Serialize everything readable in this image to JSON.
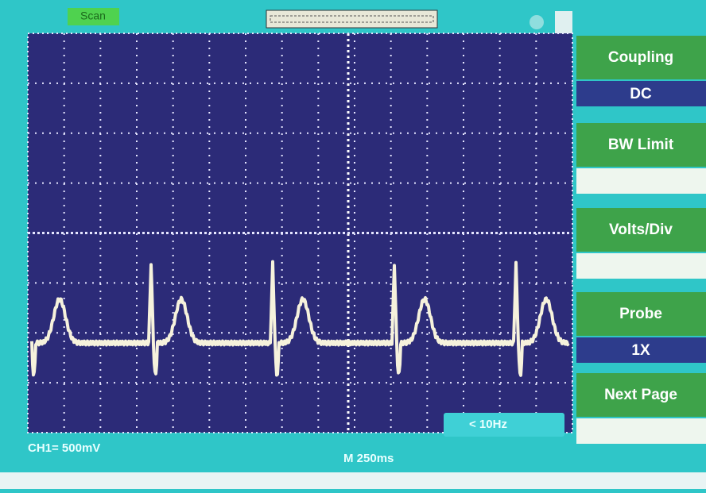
{
  "header": {
    "mode": "Scan"
  },
  "menu": {
    "items": [
      {
        "label": "Coupling",
        "value": "DC"
      },
      {
        "label": "BW Limit",
        "value": null
      },
      {
        "label": "Volts/Div",
        "value": null
      },
      {
        "label": "Probe",
        "value": "1X"
      },
      {
        "label": "Next Page",
        "value": null
      }
    ]
  },
  "status": {
    "channel": "CH1= 500mV",
    "timebase": "M 250ms",
    "trigger": "< 10Hz"
  }
}
